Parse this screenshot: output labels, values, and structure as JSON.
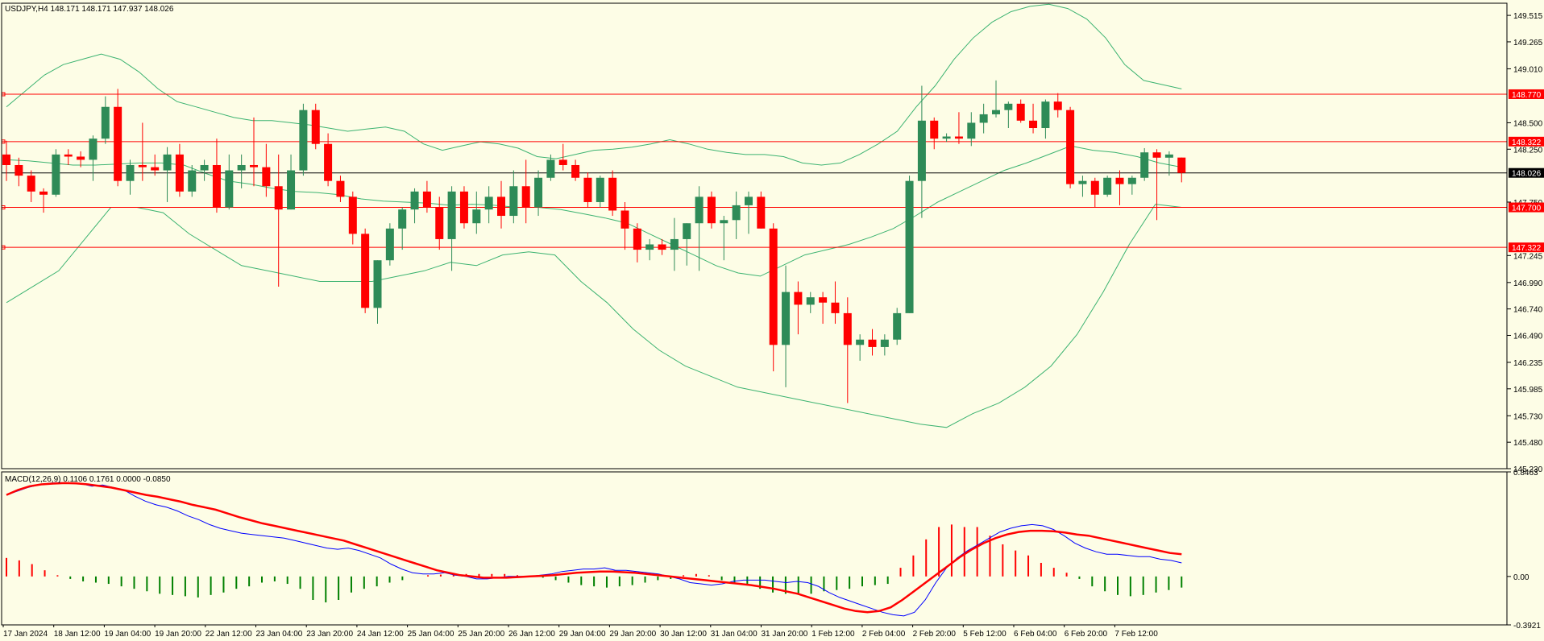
{
  "symbol_header": "USDJPY,H4  148.171 148.171 147.937 148.026",
  "macd_header": "MACD(12,26,9) 0.1106 0.1761 0.0000 -0.0850",
  "colors": {
    "background": "#fdfde6",
    "bull": "#2e8b57",
    "bear": "#ff0000",
    "bands": "#3cb371",
    "hline": "#ff0000",
    "current": "#000000",
    "macd_main": "#0000ff",
    "macd_signal": "#ff0000",
    "hist_pos": "#ff0000",
    "hist_neg": "#008000"
  },
  "chart_data": [
    {
      "type": "candlestick",
      "title": "USDJPY,H4",
      "ylim": [
        145.23,
        149.63
      ],
      "price_ticks": [
        "149.515",
        "149.265",
        "149.010",
        "148.500",
        "148.250",
        "147.750",
        "147.245",
        "146.990",
        "146.740",
        "146.490",
        "146.235",
        "145.985",
        "145.730",
        "145.480",
        "145.230"
      ],
      "x_tick_labels": [
        "17 Jan 2024",
        "18 Jan 12:00",
        "19 Jan 04:00",
        "19 Jan 20:00",
        "22 Jan 12:00",
        "23 Jan 04:00",
        "23 Jan 20:00",
        "24 Jan 12:00",
        "25 Jan 04:00",
        "25 Jan 20:00",
        "26 Jan 12:00",
        "29 Jan 04:00",
        "29 Jan 20:00",
        "30 Jan 12:00",
        "31 Jan 04:00",
        "31 Jan 20:00",
        "1 Feb 12:00",
        "2 Feb 04:00",
        "2 Feb 20:00",
        "5 Feb 12:00",
        "6 Feb 04:00",
        "6 Feb 20:00",
        "7 Feb 12:00"
      ],
      "horizontal_levels": [
        {
          "label": "148.770",
          "value": 148.77
        },
        {
          "label": "148.322",
          "value": 148.322
        },
        {
          "label": "147.700",
          "value": 147.7
        },
        {
          "label": "147.322",
          "value": 147.322
        }
      ],
      "current_price": {
        "label": "148.026",
        "value": 148.026
      },
      "candles": [
        [
          148.2,
          148.33,
          147.95,
          148.1
        ],
        [
          148.1,
          148.17,
          147.9,
          148.0
        ],
        [
          148.0,
          148.05,
          147.75,
          147.85
        ],
        [
          147.85,
          147.88,
          147.65,
          147.82
        ],
        [
          147.82,
          148.25,
          147.8,
          148.2
        ],
        [
          148.2,
          148.25,
          148.1,
          148.18
        ],
        [
          148.18,
          148.23,
          148.08,
          148.15
        ],
        [
          148.15,
          148.38,
          147.95,
          148.35
        ],
        [
          148.35,
          148.75,
          148.3,
          148.65
        ],
        [
          148.65,
          148.82,
          147.9,
          147.95
        ],
        [
          147.95,
          148.15,
          147.82,
          148.1
        ],
        [
          148.1,
          148.5,
          147.95,
          148.08
        ],
        [
          148.08,
          148.2,
          148.0,
          148.05
        ],
        [
          148.05,
          148.27,
          147.75,
          148.2
        ],
        [
          148.2,
          148.3,
          147.8,
          147.85
        ],
        [
          147.85,
          148.1,
          147.8,
          148.05
        ],
        [
          148.05,
          148.15,
          147.95,
          148.1
        ],
        [
          148.1,
          148.35,
          147.65,
          147.7
        ],
        [
          147.7,
          148.2,
          147.68,
          148.05
        ],
        [
          148.05,
          148.2,
          147.88,
          148.1
        ],
        [
          148.1,
          148.55,
          147.9,
          148.08
        ],
        [
          148.08,
          148.3,
          147.8,
          147.9
        ],
        [
          147.9,
          148.2,
          146.95,
          147.68
        ],
        [
          147.68,
          148.2,
          147.68,
          148.05
        ],
        [
          148.05,
          148.68,
          148.0,
          148.62
        ],
        [
          148.62,
          148.68,
          148.25,
          148.3
        ],
        [
          148.3,
          148.4,
          147.9,
          147.95
        ],
        [
          147.95,
          148.0,
          147.75,
          147.8
        ],
        [
          147.8,
          147.85,
          147.35,
          147.45
        ],
        [
          147.45,
          147.5,
          146.7,
          146.75
        ],
        [
          146.75,
          147.2,
          146.6,
          147.2
        ],
        [
          147.2,
          147.55,
          147.15,
          147.5
        ],
        [
          147.5,
          147.7,
          147.3,
          147.68
        ],
        [
          147.68,
          147.88,
          147.55,
          147.85
        ],
        [
          147.85,
          147.95,
          147.65,
          147.7
        ],
        [
          147.7,
          147.8,
          147.3,
          147.4
        ],
        [
          147.4,
          147.9,
          147.1,
          147.85
        ],
        [
          147.85,
          147.9,
          147.5,
          147.55
        ],
        [
          147.55,
          147.85,
          147.45,
          147.68
        ],
        [
          147.68,
          147.9,
          147.55,
          147.8
        ],
        [
          147.8,
          147.95,
          147.5,
          147.62
        ],
        [
          147.62,
          148.05,
          147.55,
          147.9
        ],
        [
          147.9,
          148.15,
          147.55,
          147.7
        ],
        [
          147.7,
          148.05,
          147.62,
          147.98
        ],
        [
          147.98,
          148.2,
          147.95,
          148.15
        ],
        [
          148.15,
          148.3,
          148.05,
          148.1
        ],
        [
          148.1,
          148.15,
          147.95,
          147.98
        ],
        [
          147.98,
          148.03,
          147.7,
          147.75
        ],
        [
          147.75,
          148.0,
          147.7,
          147.98
        ],
        [
          147.98,
          148.05,
          147.62,
          147.67
        ],
        [
          147.67,
          147.75,
          147.3,
          147.5
        ],
        [
          147.5,
          147.55,
          147.18,
          147.3
        ],
        [
          147.3,
          147.4,
          147.2,
          147.35
        ],
        [
          147.35,
          147.4,
          147.25,
          147.3
        ],
        [
          147.3,
          147.6,
          147.1,
          147.4
        ],
        [
          147.4,
          147.55,
          147.15,
          147.55
        ],
        [
          147.55,
          147.9,
          147.1,
          147.8
        ],
        [
          147.8,
          147.85,
          147.5,
          147.55
        ],
        [
          147.55,
          147.62,
          147.2,
          147.58
        ],
        [
          147.58,
          147.85,
          147.4,
          147.72
        ],
        [
          147.72,
          147.85,
          147.45,
          147.8
        ],
        [
          147.8,
          147.85,
          147.5,
          147.5
        ],
        [
          147.5,
          147.55,
          146.15,
          146.4
        ],
        [
          146.4,
          147.15,
          146.0,
          146.9
        ],
        [
          146.9,
          147.0,
          146.5,
          146.78
        ],
        [
          146.78,
          146.9,
          146.7,
          146.85
        ],
        [
          146.85,
          146.9,
          146.6,
          146.8
        ],
        [
          146.8,
          147.0,
          146.6,
          146.7
        ],
        [
          146.7,
          146.85,
          145.85,
          146.4
        ],
        [
          146.4,
          146.5,
          146.25,
          146.45
        ],
        [
          146.45,
          146.55,
          146.3,
          146.38
        ],
        [
          146.38,
          146.5,
          146.3,
          146.45
        ],
        [
          146.45,
          146.75,
          146.4,
          146.7
        ],
        [
          146.7,
          148.0,
          146.7,
          147.95
        ],
        [
          147.95,
          148.85,
          147.6,
          148.52
        ],
        [
          148.52,
          148.55,
          148.25,
          148.35
        ],
        [
          148.35,
          148.4,
          148.32,
          148.37
        ],
        [
          148.37,
          148.6,
          148.3,
          148.35
        ],
        [
          148.35,
          148.6,
          148.28,
          148.5
        ],
        [
          148.5,
          148.68,
          148.4,
          148.58
        ],
        [
          148.58,
          148.9,
          148.55,
          148.62
        ],
        [
          148.62,
          148.7,
          148.45,
          148.68
        ],
        [
          148.68,
          148.72,
          148.5,
          148.52
        ],
        [
          148.52,
          148.68,
          148.4,
          148.45
        ],
        [
          148.45,
          148.72,
          148.35,
          148.7
        ],
        [
          148.7,
          148.78,
          148.55,
          148.62
        ],
        [
          148.62,
          148.65,
          147.88,
          147.92
        ],
        [
          147.92,
          148.0,
          147.8,
          147.95
        ],
        [
          147.95,
          147.98,
          147.7,
          147.82
        ],
        [
          147.82,
          148.0,
          147.8,
          147.98
        ],
        [
          147.98,
          148.05,
          147.72,
          147.92
        ],
        [
          147.92,
          148.0,
          147.82,
          147.98
        ],
        [
          147.98,
          148.26,
          147.95,
          148.22
        ],
        [
          148.22,
          148.25,
          147.58,
          148.17
        ],
        [
          148.17,
          148.23,
          148.0,
          148.2
        ],
        [
          148.171,
          148.171,
          147.937,
          148.026
        ]
      ],
      "bb_upper": [
        148.65,
        148.8,
        148.95,
        149.05,
        149.1,
        149.15,
        149.1,
        148.98,
        148.82,
        148.7,
        148.65,
        148.6,
        148.55,
        148.52,
        148.52,
        148.5,
        148.48,
        148.45,
        148.42,
        148.44,
        148.46,
        148.42,
        148.3,
        148.24,
        148.28,
        148.32,
        148.3,
        148.26,
        148.18,
        148.16,
        148.2,
        148.24,
        148.25,
        148.27,
        148.3,
        148.34,
        148.3,
        148.25,
        148.22,
        148.2,
        148.2,
        148.18,
        148.12,
        148.1,
        148.12,
        148.2,
        148.3,
        148.42,
        148.65,
        148.85,
        149.1,
        149.3,
        149.45,
        149.55,
        149.6,
        149.62,
        149.58,
        149.48,
        149.3,
        149.05,
        148.9,
        148.86,
        148.82
      ],
      "bb_middle": [
        148.15,
        148.14,
        148.12,
        148.1,
        148.1,
        148.11,
        148.12,
        148.12,
        148.1,
        148.02,
        147.95,
        147.92,
        147.88,
        147.85,
        147.84,
        147.82,
        147.78,
        147.76,
        147.75,
        147.74,
        147.72,
        147.73,
        147.72,
        147.7,
        147.7,
        147.68,
        147.64,
        147.6,
        147.55,
        147.45,
        147.35,
        147.25,
        147.15,
        147.08,
        147.05,
        147.15,
        147.25,
        147.3,
        147.35,
        147.42,
        147.5,
        147.62,
        147.75,
        147.85,
        147.95,
        148.05,
        148.12,
        148.2,
        148.28,
        148.24,
        148.22,
        148.18,
        148.12,
        148.08
      ],
      "bb_lower": [
        146.8,
        146.95,
        147.1,
        147.4,
        147.7,
        147.7,
        147.65,
        147.45,
        147.3,
        147.15,
        147.1,
        147.05,
        147.0,
        147.0,
        147.0,
        147.05,
        147.1,
        147.18,
        147.15,
        147.25,
        147.28,
        147.25,
        147.0,
        146.8,
        146.55,
        146.35,
        146.2,
        146.1,
        146.0,
        145.95,
        145.9,
        145.85,
        145.8,
        145.75,
        145.7,
        145.65,
        145.62,
        145.75,
        145.85,
        146.0,
        146.2,
        146.5,
        146.9,
        147.35,
        147.73,
        147.7
      ]
    },
    {
      "type": "line",
      "title": "MACD(12,26,9)",
      "ylim": [
        -0.3921,
        0.8463
      ],
      "y_tick_labels": [
        "0.8463",
        "0.00",
        "-0.3921"
      ],
      "x_tick_labels": [
        "17 Jan 2024",
        "18 Jan 12:00",
        "19 Jan 04:00",
        "19 Jan 20:00",
        "22 Jan 12:00",
        "23 Jan 04:00",
        "23 Jan 20:00",
        "24 Jan 12:00",
        "25 Jan 04:00",
        "25 Jan 20:00",
        "26 Jan 12:00",
        "29 Jan 04:00",
        "29 Jan 20:00",
        "30 Jan 12:00",
        "31 Jan 04:00",
        "31 Jan 20:00",
        "1 Feb 12:00",
        "2 Feb 04:00",
        "2 Feb 20:00",
        "5 Feb 12:00",
        "6 Feb 04:00",
        "6 Feb 20:00",
        "7 Feb 12:00"
      ],
      "series": [
        {
          "name": "MACD",
          "values": [
            0.66,
            0.69,
            0.72,
            0.74,
            0.755,
            0.76,
            0.755,
            0.75,
            0.73,
            0.74,
            0.72,
            0.7,
            0.65,
            0.61,
            0.58,
            0.56,
            0.53,
            0.49,
            0.46,
            0.42,
            0.39,
            0.37,
            0.35,
            0.34,
            0.33,
            0.32,
            0.31,
            0.29,
            0.27,
            0.25,
            0.23,
            0.22,
            0.23,
            0.21,
            0.18,
            0.15,
            0.1,
            0.06,
            0.03,
            0.02,
            0.02,
            0.03,
            0.01,
            0.0,
            -0.02,
            -0.02,
            -0.01,
            0.0,
            0.0,
            0.0,
            0.01,
            0.02,
            0.04,
            0.05,
            0.06,
            0.06,
            0.07,
            0.05,
            0.05,
            0.04,
            0.03,
            0.02,
            0.0,
            -0.02,
            -0.05,
            -0.06,
            -0.07,
            -0.06,
            -0.04,
            -0.03,
            -0.03,
            -0.03,
            -0.04,
            -0.05,
            -0.04,
            -0.05,
            -0.08,
            -0.13,
            -0.17,
            -0.2,
            -0.23,
            -0.26,
            -0.29,
            -0.31,
            -0.32,
            -0.29,
            -0.19,
            -0.05,
            0.07,
            0.15,
            0.21,
            0.26,
            0.31,
            0.36,
            0.39,
            0.41,
            0.42,
            0.41,
            0.38,
            0.33,
            0.27,
            0.23,
            0.2,
            0.18,
            0.18,
            0.17,
            0.16,
            0.16,
            0.14,
            0.13,
            0.11
          ]
        },
        {
          "name": "Signal",
          "values": [
            0.66,
            0.7,
            0.73,
            0.745,
            0.752,
            0.756,
            0.753,
            0.745,
            0.732,
            0.72,
            0.7,
            0.68,
            0.66,
            0.645,
            0.625,
            0.605,
            0.58,
            0.56,
            0.54,
            0.51,
            0.48,
            0.455,
            0.43,
            0.41,
            0.39,
            0.37,
            0.35,
            0.33,
            0.31,
            0.29,
            0.26,
            0.23,
            0.2,
            0.17,
            0.14,
            0.11,
            0.08,
            0.05,
            0.03,
            0.01,
            0.0,
            -0.01,
            -0.01,
            -0.01,
            -0.005,
            0.0,
            0.005,
            0.01,
            0.02,
            0.03,
            0.035,
            0.04,
            0.04,
            0.035,
            0.03,
            0.02,
            0.01,
            0.0,
            -0.01,
            -0.02,
            -0.03,
            -0.04,
            -0.05,
            -0.06,
            -0.07,
            -0.085,
            -0.1,
            -0.12,
            -0.14,
            -0.17,
            -0.2,
            -0.23,
            -0.26,
            -0.28,
            -0.29,
            -0.28,
            -0.25,
            -0.19,
            -0.12,
            -0.05,
            0.02,
            0.09,
            0.16,
            0.22,
            0.27,
            0.31,
            0.34,
            0.36,
            0.37,
            0.37,
            0.365,
            0.355,
            0.34,
            0.33,
            0.31,
            0.29,
            0.27,
            0.25,
            0.23,
            0.21,
            0.19,
            0.18
          ]
        },
        {
          "name": "Histogram",
          "values": [
            0.15,
            0.13,
            0.1,
            0.05,
            0.01,
            -0.02,
            -0.04,
            -0.05,
            -0.06,
            -0.08,
            -0.1,
            -0.12,
            -0.14,
            -0.15,
            -0.16,
            -0.17,
            -0.15,
            -0.13,
            -0.1,
            -0.08,
            -0.05,
            -0.04,
            -0.06,
            -0.1,
            -0.19,
            -0.21,
            -0.19,
            -0.13,
            -0.1,
            -0.08,
            -0.05,
            -0.03,
            0.0,
            0.01,
            0.015,
            0.015,
            0.02,
            0.02,
            0.02,
            0.02,
            0.01,
            0.0,
            -0.01,
            -0.03,
            -0.05,
            -0.07,
            -0.08,
            -0.09,
            -0.08,
            -0.07,
            -0.05,
            -0.03,
            -0.02,
            0.01,
            0.02,
            0.01,
            -0.03,
            -0.06,
            -0.07,
            -0.1,
            -0.13,
            -0.14,
            -0.14,
            -0.14,
            -0.12,
            -0.11,
            -0.1,
            -0.08,
            -0.07,
            -0.06,
            0.07,
            0.17,
            0.3,
            0.4,
            0.42,
            0.4,
            0.4,
            0.33,
            0.26,
            0.21,
            0.17,
            0.11,
            0.07,
            0.03,
            -0.02,
            -0.08,
            -0.12,
            -0.15,
            -0.16,
            -0.15,
            -0.13,
            -0.11,
            -0.09
          ]
        }
      ]
    }
  ]
}
